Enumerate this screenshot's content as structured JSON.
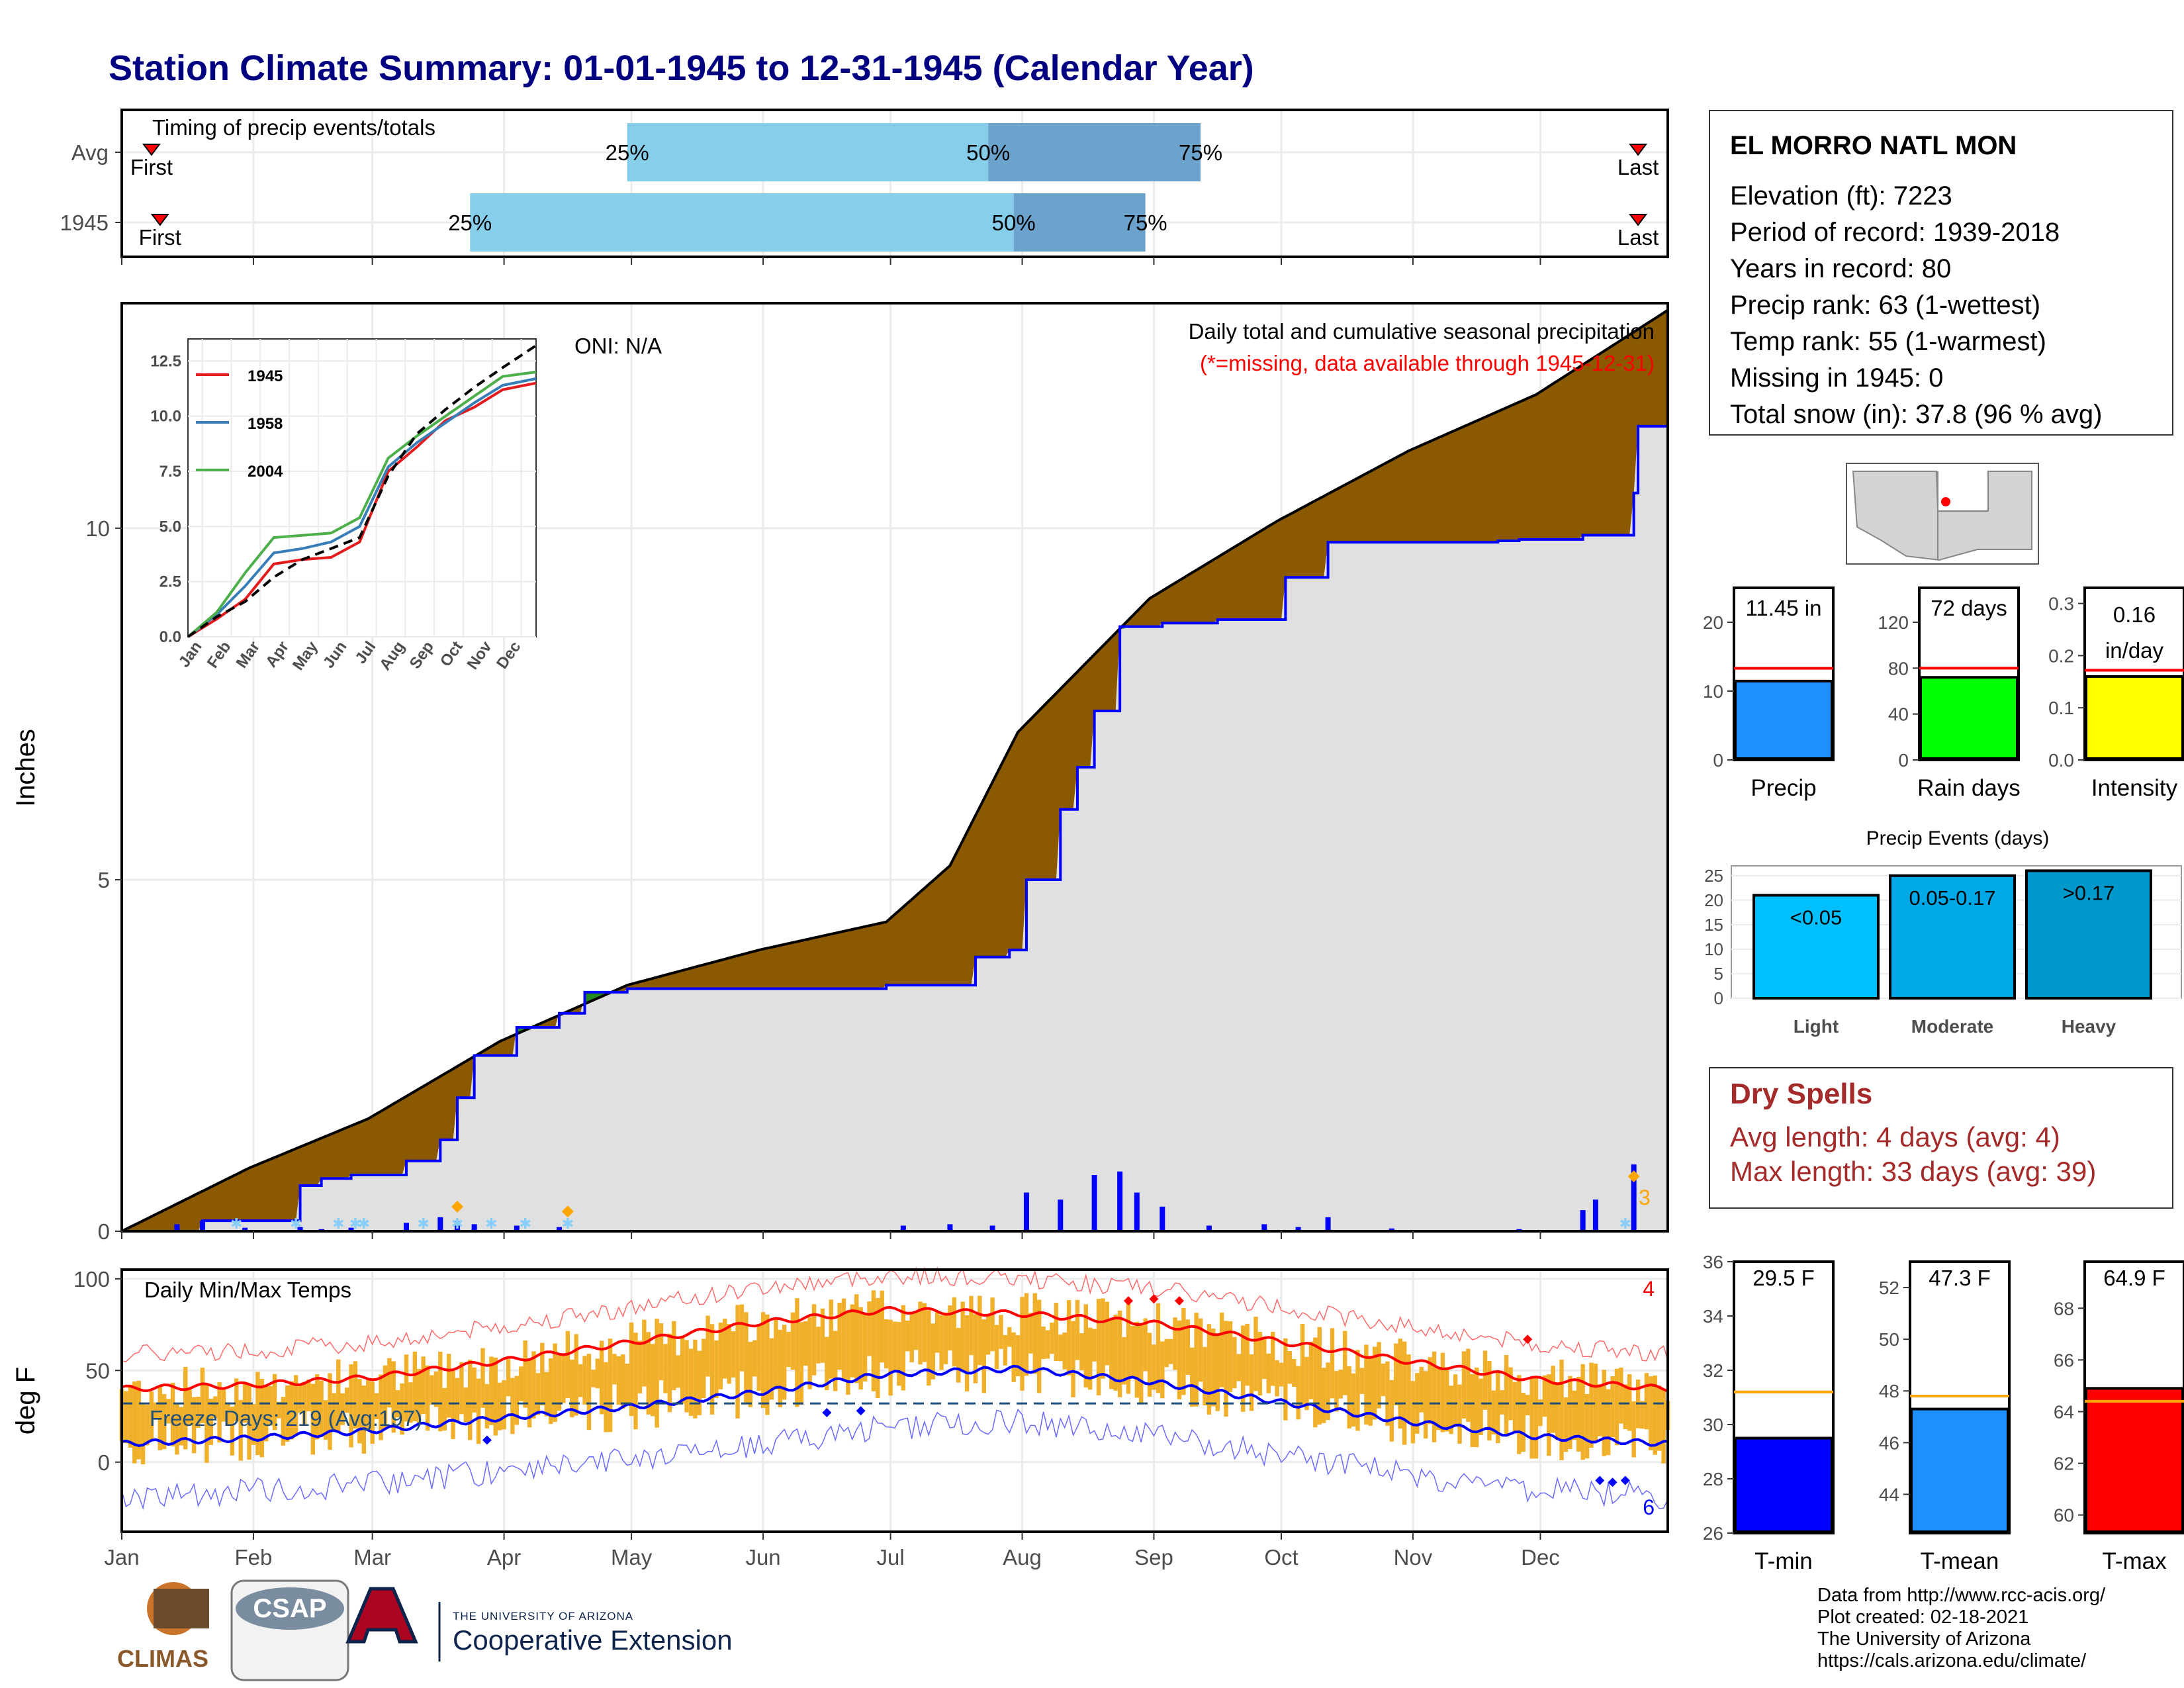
{
  "title": "Station Climate Summary: 01-01-1945 to 12-31-1945 (Calendar Year)",
  "colors": {
    "title": "#000080",
    "avg_cum": "#8b5a00",
    "obs_area": "#e0e0e0",
    "above_avg": "#228b22",
    "obs_line": "#0000ff",
    "daily_bar": "#0000ff",
    "temp_bar": "#f0b02a",
    "tmax": "#ff0000",
    "tmin": "#0000ff",
    "dry": "#a52a2a",
    "q_light": "#87ceeb",
    "q_dark": "#6ba3cc"
  },
  "timing": {
    "title": "Timing of precip events/totals",
    "rows": [
      {
        "label": "Avg",
        "first": "First",
        "last": "Last",
        "q25": "25%",
        "q50": "50%",
        "q75": "75%",
        "first_doy": 8,
        "q25_doy": 120,
        "q50_doy": 205,
        "q75_doy": 255,
        "last_doy": 358
      },
      {
        "label": "1945",
        "first": "First",
        "last": "Last",
        "q25": "25%",
        "q50": "50%",
        "q75": "75%",
        "first_doy": 10,
        "q25_doy": 83,
        "q50_doy": 211,
        "q75_doy": 242,
        "last_doy": 358
      }
    ]
  },
  "precip_panel": {
    "ylabel": "Inches",
    "oni": "ONI: N/A",
    "caption1": "Daily total and cumulative seasonal precipitation",
    "caption2": "(*=missing, data available through 1945-12-31)",
    "count_label": "3"
  },
  "inset": {
    "legend": [
      "1945",
      "1958",
      "2004"
    ],
    "yticks": [
      "0.0",
      "2.5",
      "5.0",
      "7.5",
      "10.0",
      "12.5"
    ],
    "xticks": [
      "Jan",
      "Feb",
      "Mar",
      "Apr",
      "May",
      "Jun",
      "Jul",
      "Aug",
      "Sep",
      "Oct",
      "Nov",
      "Dec"
    ]
  },
  "temp_panel": {
    "ylabel": "deg F",
    "title": "Daily Min/Max Temps",
    "freeze": "Freeze Days: 219 (Avg:197)",
    "max_count": "4",
    "min_count": "6"
  },
  "station": {
    "name": "EL MORRO NATL MON",
    "lines": [
      "Elevation (ft): 7223",
      "Period of record: 1939-2018",
      "Years in record: 80",
      "Precip rank: 63 (1-wettest)",
      "Temp rank: 55 (1-warmest)",
      "Missing in 1945: 0",
      "Total snow (in): 37.8 (96 % avg)"
    ]
  },
  "summary_bars": [
    {
      "name": "Precip",
      "label": "11.45 in",
      "value": 11.45,
      "avg": 13.3,
      "ylim": [
        0,
        25
      ],
      "ticks": [
        0,
        10,
        20
      ],
      "color": "#1e90ff"
    },
    {
      "name": "Rain days",
      "label": "72 days",
      "value": 72,
      "avg": 80,
      "ylim": [
        0,
        150
      ],
      "ticks": [
        0,
        40,
        80,
        120
      ],
      "color": "#00ff00"
    },
    {
      "name": "Intensity",
      "label": "0.16 in/day",
      "label_top": "0.16",
      "label_bottom": "in/day",
      "value": 0.16,
      "avg": 0.172,
      "ylim": [
        0,
        0.33
      ],
      "ticks": [
        "0.0",
        "0.1",
        "0.2",
        "0.3"
      ],
      "color": "#ffff00"
    }
  ],
  "events": {
    "title": "Precip Events (days)",
    "ticks": [
      0,
      5,
      10,
      15,
      20,
      25
    ],
    "bars": [
      {
        "name": "Light",
        "label": "<0.05",
        "value": 21,
        "color": "#00bfff"
      },
      {
        "name": "Moderate",
        "label": "0.05-0.17",
        "value": 25,
        "color": "#00a8e8"
      },
      {
        "name": "Heavy",
        "label": ">0.17",
        "value": 26,
        "color": "#0099cc"
      }
    ]
  },
  "dry_spells": {
    "title": "Dry Spells",
    "avg": "Avg length: 4 days (avg: 4)",
    "max": "Max length: 33 days (avg: 39)"
  },
  "temp_bars": [
    {
      "name": "T-min",
      "label": "29.5 F",
      "value": 29.5,
      "avg": 31.2,
      "ylim": [
        26,
        36
      ],
      "ticks": [
        26,
        28,
        30,
        32,
        34,
        36
      ],
      "color": "#0000ff"
    },
    {
      "name": "T-mean",
      "label": "47.3 F",
      "value": 47.3,
      "avg": 47.8,
      "ylim": [
        42.5,
        53
      ],
      "ticks": [
        44,
        46,
        48,
        50,
        52
      ],
      "color": "#1e90ff"
    },
    {
      "name": "T-max",
      "label": "64.9 F",
      "value": 64.9,
      "avg": 64.4,
      "ylim": [
        59.3,
        69.8
      ],
      "ticks": [
        60,
        62,
        64,
        66,
        68
      ],
      "color": "#ff0000"
    }
  ],
  "chart_data": [
    {
      "type": "area",
      "title": "Daily total and cumulative seasonal precipitation",
      "ylabel": "Inches",
      "ylim": [
        0,
        13.2
      ],
      "yticks": [
        0,
        5,
        10
      ],
      "months": [
        "Jan",
        "Feb",
        "Mar",
        "Apr",
        "May",
        "Jun",
        "Jul",
        "Aug",
        "Sep",
        "Oct",
        "Nov",
        "Dec"
      ],
      "series": [
        {
          "name": "avg cumulative",
          "x": [
            1,
            31,
            59,
            90,
            120,
            151,
            181,
            196,
            212,
            243,
            273,
            304,
            334,
            365
          ],
          "values": [
            0,
            0.9,
            1.6,
            2.7,
            3.5,
            4.0,
            4.4,
            5.2,
            7.1,
            9.0,
            10.1,
            11.1,
            11.9,
            13.1
          ]
        },
        {
          "name": "1945 cumulative",
          "x": [
            1,
            14,
            20,
            43,
            48,
            55,
            68,
            76,
            80,
            84,
            94,
            104,
            110,
            120,
            151,
            181,
            193,
            202,
            210,
            214,
            222,
            226,
            230,
            236,
            246,
            259,
            275,
            285,
            300,
            325,
            330,
            345,
            357,
            358,
            365
          ],
          "values": [
            0,
            0,
            0.15,
            0.65,
            0.75,
            0.8,
            1.0,
            1.3,
            1.9,
            2.5,
            2.9,
            3.1,
            3.4,
            3.45,
            3.45,
            3.5,
            3.5,
            3.9,
            4.0,
            5.0,
            6.0,
            6.6,
            7.4,
            8.6,
            8.65,
            8.7,
            9.3,
            9.8,
            9.8,
            9.82,
            9.84,
            9.9,
            10.5,
            11.45,
            11.45
          ]
        }
      ]
    },
    {
      "type": "bar",
      "title": "Daily precipitation",
      "x": [
        14,
        20,
        30,
        43,
        48,
        55,
        68,
        76,
        80,
        84,
        94,
        104,
        185,
        196,
        206,
        214,
        222,
        230,
        236,
        240,
        246,
        257,
        270,
        278,
        285,
        300,
        330,
        345,
        348,
        357
      ],
      "values": [
        0.1,
        0.15,
        0.05,
        0.06,
        0.03,
        0.05,
        0.12,
        0.2,
        0.15,
        0.1,
        0.08,
        0.06,
        0.08,
        0.1,
        0.08,
        0.55,
        0.45,
        0.8,
        0.85,
        0.55,
        0.35,
        0.08,
        0.1,
        0.06,
        0.2,
        0.04,
        0.03,
        0.3,
        0.45,
        0.95
      ]
    },
    {
      "type": "line",
      "title": "Daily Min/Max Temps",
      "ylabel": "deg F",
      "ylim": [
        -38,
        105
      ],
      "yticks": [
        0,
        50,
        100
      ],
      "series": [
        {
          "name": "avg max",
          "x": [
            1,
            31,
            59,
            90,
            120,
            151,
            181,
            212,
            243,
            273,
            304,
            334,
            365
          ],
          "values": [
            40,
            42,
            46,
            55,
            65,
            76,
            83,
            81,
            76,
            66,
            55,
            45,
            40
          ]
        },
        {
          "name": "avg min",
          "x": [
            1,
            31,
            59,
            90,
            120,
            151,
            181,
            212,
            243,
            273,
            304,
            334,
            365
          ],
          "values": [
            10,
            13,
            17,
            24,
            30,
            38,
            48,
            51,
            44,
            33,
            22,
            14,
            10
          ]
        },
        {
          "name": "freeze line",
          "x": [
            1,
            365
          ],
          "values": [
            32,
            32
          ]
        }
      ]
    },
    {
      "type": "line",
      "title": "Cumulative precipitation comparison",
      "ylim": [
        0,
        13.5
      ],
      "series": [
        {
          "name": "1945",
          "x": [
            0,
            30,
            60,
            90,
            120,
            150,
            180,
            210,
            240,
            270,
            300,
            330,
            365
          ],
          "values": [
            0,
            0.8,
            1.7,
            3.3,
            3.5,
            3.6,
            4.3,
            7.5,
            8.6,
            9.8,
            10.4,
            11.2,
            11.5
          ]
        },
        {
          "name": "1958",
          "x": [
            0,
            30,
            60,
            90,
            120,
            150,
            180,
            210,
            240,
            270,
            300,
            330,
            365
          ],
          "values": [
            0,
            1.0,
            2.3,
            3.8,
            4.0,
            4.3,
            5.0,
            7.7,
            8.8,
            9.7,
            10.6,
            11.4,
            11.7
          ]
        },
        {
          "name": "2004",
          "x": [
            0,
            30,
            60,
            90,
            120,
            150,
            180,
            210,
            240,
            270,
            300,
            330,
            365
          ],
          "values": [
            0,
            1.1,
            2.9,
            4.5,
            4.6,
            4.7,
            5.4,
            8.1,
            9.1,
            10.0,
            10.9,
            11.8,
            12.0
          ]
        },
        {
          "name": "avg",
          "x": [
            0,
            30,
            60,
            90,
            120,
            150,
            180,
            210,
            240,
            270,
            300,
            330,
            365
          ],
          "values": [
            0,
            0.9,
            1.6,
            2.7,
            3.5,
            4.0,
            4.5,
            7.3,
            9.2,
            10.3,
            11.3,
            12.2,
            13.2
          ]
        }
      ]
    }
  ],
  "credits": [
    "Data from http://www.rcc-acis.org/",
    "Plot created: 02-18-2021",
    "The University of Arizona",
    "https://cals.arizona.edu/climate/"
  ],
  "logos": {
    "climas": "CLIMAS",
    "csap": "CSAP",
    "ua_line1": "THE UNIVERSITY OF ARIZONA",
    "ua_line2": "Cooperative Extension"
  }
}
